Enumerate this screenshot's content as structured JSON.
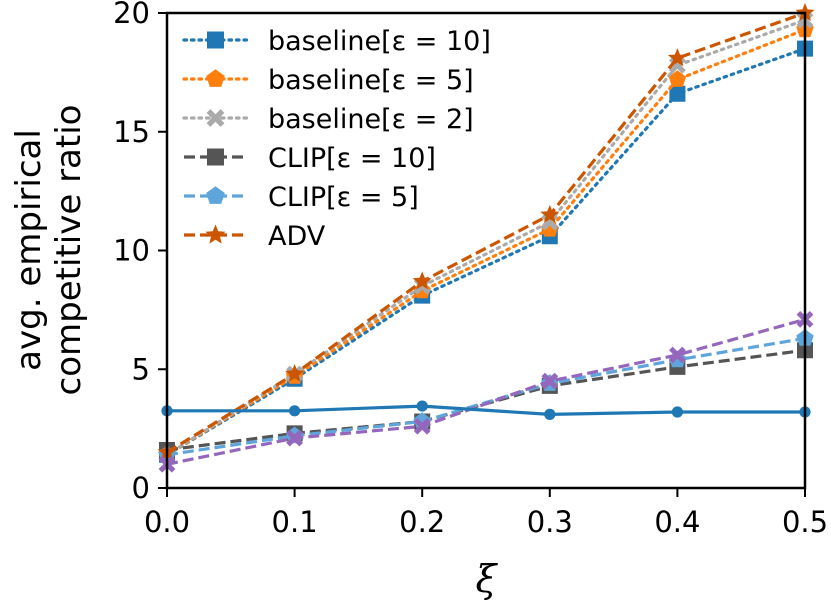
{
  "chart_data": {
    "type": "line",
    "title": "",
    "xlabel": "ξ",
    "ylabel_lines": [
      "avg. empirical",
      "competitive ratio"
    ],
    "xlim": [
      0.0,
      0.5
    ],
    "ylim": [
      0,
      20
    ],
    "xticks": [
      "0.0",
      "0.1",
      "0.2",
      "0.3",
      "0.4",
      "0.5"
    ],
    "yticks": [
      "0",
      "5",
      "10",
      "15",
      "20"
    ],
    "x": [
      0.0,
      0.1,
      0.2,
      0.3,
      0.4,
      0.5
    ],
    "legend_position": "top-left",
    "series": [
      {
        "name": "baseline[ε = 10]",
        "color": "#1f77b4",
        "linestyle": "dotted",
        "marker": "square",
        "in_legend": true,
        "values": [
          1.4,
          4.6,
          8.1,
          10.6,
          16.6,
          18.5
        ]
      },
      {
        "name": "baseline[ε = 5]",
        "color": "#ff7f0e",
        "linestyle": "dotted",
        "marker": "pentagon",
        "in_legend": true,
        "values": [
          1.4,
          4.7,
          8.3,
          10.9,
          17.2,
          19.3
        ]
      },
      {
        "name": "baseline[ε = 2]",
        "color": "#aaaaaa",
        "linestyle": "dotted",
        "marker": "x",
        "in_legend": true,
        "values": [
          1.4,
          4.8,
          8.5,
          11.2,
          17.8,
          19.7
        ]
      },
      {
        "name": "CLIP[ε = 10]",
        "color": "#555555",
        "linestyle": "dashed",
        "marker": "square",
        "in_legend": true,
        "values": [
          1.6,
          2.3,
          2.8,
          4.3,
          5.1,
          5.8
        ]
      },
      {
        "name": "CLIP[ε = 5]",
        "color": "#5da5da",
        "linestyle": "dashed",
        "marker": "pentagon",
        "in_legend": true,
        "values": [
          1.4,
          2.2,
          2.8,
          4.4,
          5.4,
          6.3
        ]
      },
      {
        "name": "ADV",
        "color": "#cc5500",
        "linestyle": "dashed",
        "marker": "star",
        "in_legend": true,
        "values": [
          1.5,
          4.8,
          8.7,
          11.5,
          18.1,
          20.0
        ]
      },
      {
        "name": "",
        "color": "#9467bd",
        "linestyle": "dashed",
        "marker": "x",
        "in_legend": false,
        "values": [
          1.0,
          2.1,
          2.6,
          4.5,
          5.6,
          7.1
        ]
      },
      {
        "name": "",
        "color": "#1f77b4",
        "linestyle": "solid",
        "marker": "circle",
        "in_legend": false,
        "values": [
          3.25,
          3.25,
          3.45,
          3.1,
          3.2,
          3.2
        ]
      }
    ]
  }
}
